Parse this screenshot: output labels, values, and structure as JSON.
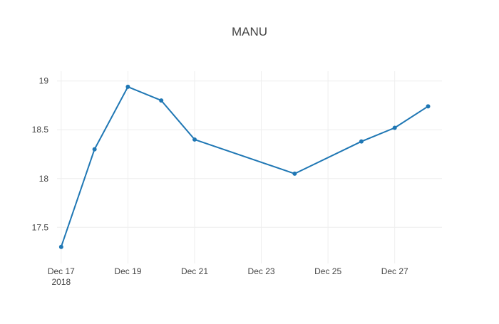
{
  "chart_data": {
    "type": "line",
    "title": "MANU",
    "xlabel": "",
    "ylabel": "",
    "grid": true,
    "legend": "none",
    "x_type": "date",
    "x_range": [
      "2018-12-16T21:00:00",
      "2018-12-28T10:00:00"
    ],
    "ylim": [
      17.13,
      19.1
    ],
    "x_ticks": [
      {
        "value": "2018-12-17",
        "label": "Dec 17",
        "sublabel": "2018"
      },
      {
        "value": "2018-12-19",
        "label": "Dec 19"
      },
      {
        "value": "2018-12-21",
        "label": "Dec 21"
      },
      {
        "value": "2018-12-23",
        "label": "Dec 23"
      },
      {
        "value": "2018-12-25",
        "label": "Dec 25"
      },
      {
        "value": "2018-12-27",
        "label": "Dec 27"
      }
    ],
    "y_ticks": [
      17.5,
      18,
      18.5,
      19
    ],
    "y_tick_labels": [
      "17.5",
      "18",
      "18.5",
      "19"
    ],
    "series": [
      {
        "color": "#1f77b4",
        "x": [
          "2018-12-17",
          "2018-12-18",
          "2018-12-19",
          "2018-12-20",
          "2018-12-21",
          "2018-12-24",
          "2018-12-26",
          "2018-12-27",
          "2018-12-28"
        ],
        "y": [
          17.3,
          18.3,
          18.94,
          18.8,
          18.4,
          18.05,
          18.38,
          18.52,
          18.74
        ]
      }
    ]
  }
}
